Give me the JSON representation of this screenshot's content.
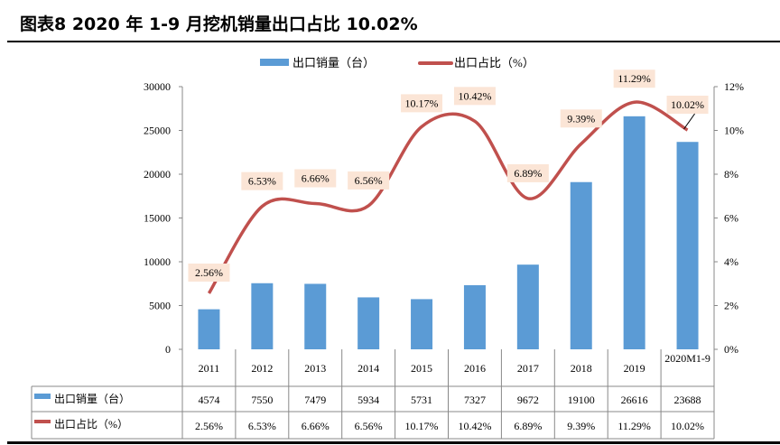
{
  "title": "图表8   2020 年 1-9 月挖机销量出口占比 10.02%",
  "colors": {
    "bar": "#5b9bd5",
    "line": "#c0504d",
    "label_bg": "#fbe5d6"
  },
  "chart_data": {
    "type": "bar+line",
    "categories": [
      "2011",
      "2012",
      "2013",
      "2014",
      "2015",
      "2016",
      "2017",
      "2018",
      "2019",
      "2020M1-9"
    ],
    "series": [
      {
        "name": "出口销量（台）",
        "type": "bar",
        "axis": "left",
        "values": [
          4574,
          7550,
          7479,
          5934,
          5731,
          7327,
          9672,
          19100,
          26616,
          23688
        ],
        "display": [
          "4574",
          "7550",
          "7479",
          "5934",
          "5731",
          "7327",
          "9672",
          "19100",
          "26616",
          "23688"
        ]
      },
      {
        "name": "出口占比（%）",
        "type": "line",
        "axis": "right",
        "values": [
          2.56,
          6.53,
          6.66,
          6.56,
          10.17,
          10.42,
          6.89,
          9.39,
          11.29,
          10.02
        ],
        "display": [
          "2.56%",
          "6.53%",
          "6.66%",
          "6.56%",
          "10.17%",
          "10.42%",
          "6.89%",
          "9.39%",
          "11.29%",
          "10.02%"
        ]
      }
    ],
    "y_left": {
      "range": [
        0,
        30000
      ],
      "ticks": [
        "0",
        "5000",
        "10000",
        "15000",
        "20000",
        "25000",
        "30000"
      ]
    },
    "y_right": {
      "range": [
        0,
        12
      ],
      "ticks": [
        "0%",
        "2%",
        "4%",
        "6%",
        "8%",
        "10%",
        "12%"
      ]
    },
    "legend": "top",
    "grid": false,
    "data_table": true
  }
}
